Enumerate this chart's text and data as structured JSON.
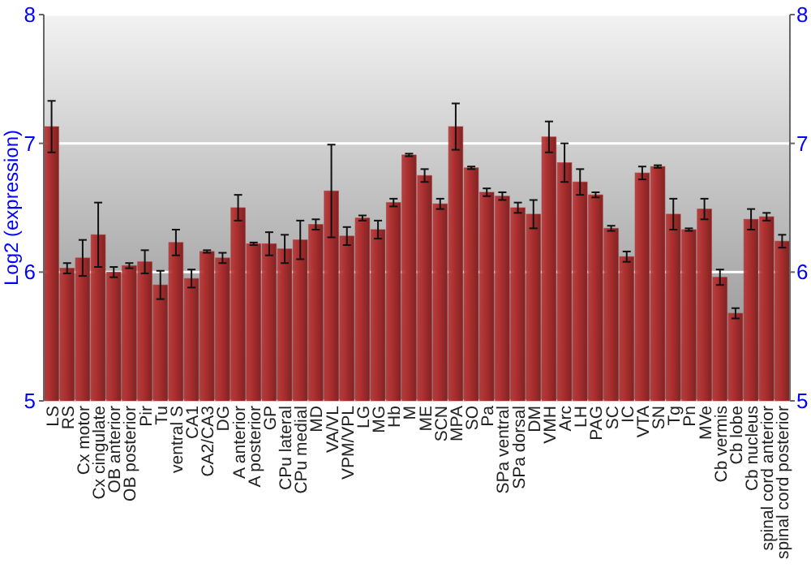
{
  "chart_data": {
    "type": "bar",
    "ylabel": "Log2 (expression)",
    "categories": [
      "LS",
      "RS",
      "Cx motor",
      "Cx cingulate",
      "OB anterior",
      "OB posterior",
      "Pir",
      "Tu",
      "ventral S",
      "CA1",
      "CA2/CA3",
      "DG",
      "A anterior",
      "A posterior",
      "GP",
      "CPu lateral",
      "CPu medial",
      "MD",
      "VA/VL",
      "VPM/VPL",
      "LG",
      "MG",
      "Hb",
      "M",
      "ME",
      "SCN",
      "MPA",
      "SO",
      "Pa",
      "SPa ventral",
      "SPa dorsal",
      "DM",
      "VMH",
      "Arc",
      "LH",
      "PAG",
      "SC",
      "IC",
      "VTA",
      "SN",
      "Tg",
      "Pn",
      "MVe",
      "Cb vermis",
      "Cb lobe",
      "Cb nucleus",
      "spinal cord anterior",
      "spinal cord posterior"
    ],
    "values": [
      7.13,
      6.03,
      6.11,
      6.29,
      6.0,
      6.05,
      6.08,
      5.9,
      6.23,
      5.95,
      6.16,
      6.11,
      6.5,
      6.22,
      6.22,
      6.18,
      6.25,
      6.37,
      6.63,
      6.28,
      6.42,
      6.33,
      6.54,
      6.91,
      6.75,
      6.53,
      7.13,
      6.81,
      6.62,
      6.59,
      6.5,
      6.45,
      7.05,
      6.85,
      6.7,
      6.6,
      6.34,
      6.12,
      6.77,
      6.82,
      6.45,
      6.33,
      6.49,
      5.96,
      5.68,
      6.41,
      6.43,
      6.24
    ],
    "errors": [
      0.2,
      0.04,
      0.14,
      0.25,
      0.04,
      0.02,
      0.09,
      0.11,
      0.1,
      0.07,
      0.01,
      0.04,
      0.1,
      0.01,
      0.09,
      0.11,
      0.15,
      0.04,
      0.36,
      0.07,
      0.02,
      0.07,
      0.03,
      0.01,
      0.05,
      0.04,
      0.18,
      0.01,
      0.03,
      0.03,
      0.04,
      0.11,
      0.12,
      0.15,
      0.1,
      0.02,
      0.02,
      0.04,
      0.05,
      0.01,
      0.12,
      0.01,
      0.08,
      0.06,
      0.04,
      0.08,
      0.03,
      0.05
    ],
    "color": "#b03030",
    "ylim": [
      5,
      8
    ],
    "yticks": [
      5,
      6,
      7,
      8
    ],
    "y2lim": [
      5,
      8
    ],
    "y2ticks": [
      5,
      6,
      7,
      8
    ],
    "grid": "y"
  }
}
